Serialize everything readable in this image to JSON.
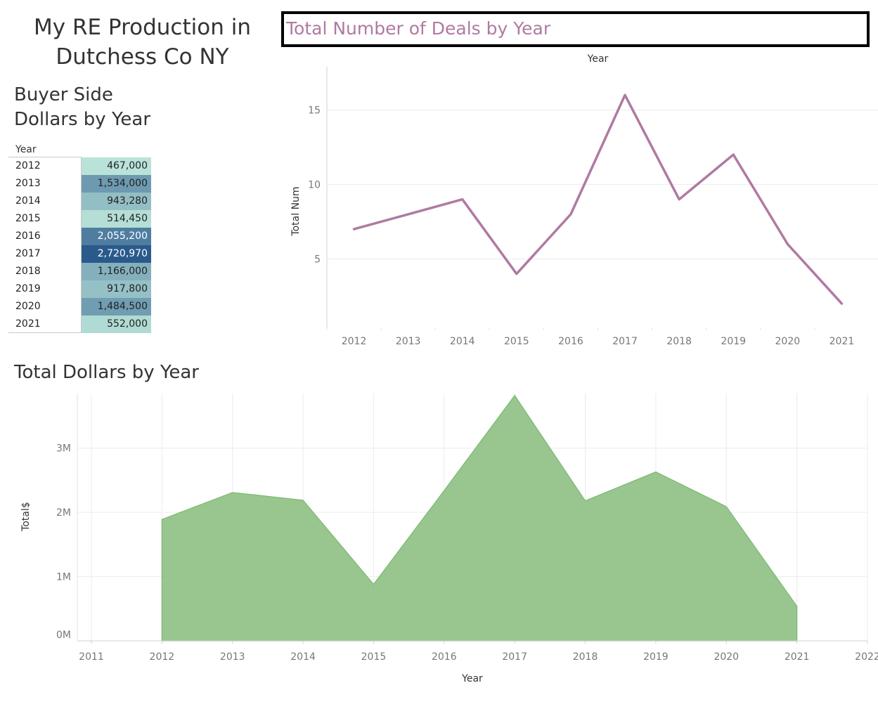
{
  "dashboard": {
    "title_line1": "My RE Production in",
    "title_line2": "Dutchess Co NY"
  },
  "buyer_table": {
    "title_line1": "Buyer Side",
    "title_line2": "Dollars by Year",
    "column_header": "Year",
    "rows": [
      {
        "year": "2012",
        "value": "467,000"
      },
      {
        "year": "2013",
        "value": "1,534,000"
      },
      {
        "year": "2014",
        "value": "943,280"
      },
      {
        "year": "2015",
        "value": "514,450"
      },
      {
        "year": "2016",
        "value": "2,055,200"
      },
      {
        "year": "2017",
        "value": "2,720,970"
      },
      {
        "year": "2018",
        "value": "1,166,000"
      },
      {
        "year": "2019",
        "value": "917,800"
      },
      {
        "year": "2020",
        "value": "1,484,500"
      },
      {
        "year": "2021",
        "value": "552,000"
      }
    ],
    "color_scale": {
      "low": "#b9e3d9",
      "high": "#2a5a8c"
    }
  },
  "chart_data": [
    {
      "type": "table",
      "title": "Buyer Side Dollars by Year",
      "columns": [
        "Year",
        "Buyer Side Dollars"
      ],
      "rows": [
        [
          "2012",
          467000
        ],
        [
          "2013",
          1534000
        ],
        [
          "2014",
          943280
        ],
        [
          "2015",
          514450
        ],
        [
          "2016",
          2055200
        ],
        [
          "2017",
          2720970
        ],
        [
          "2018",
          1166000
        ],
        [
          "2019",
          917800
        ],
        [
          "2020",
          1484500
        ],
        [
          "2021",
          552000
        ]
      ]
    },
    {
      "type": "line",
      "title": "Total Number of Deals by Year",
      "xlabel": "Year",
      "ylabel": "Total Num",
      "categories": [
        "2012",
        "2013",
        "2014",
        "2015",
        "2016",
        "2017",
        "2018",
        "2019",
        "2020",
        "2021"
      ],
      "values": [
        7,
        8,
        9,
        4,
        8,
        16,
        9,
        12,
        6,
        2
      ],
      "ylim": [
        0.4,
        17.9
      ],
      "yticks": [
        5,
        10,
        15
      ],
      "grid": true,
      "color": "#b07aa1"
    },
    {
      "type": "area",
      "title": "Total Dollars by Year",
      "xlabel": "Year",
      "ylabel": "Total$",
      "x_ticks": [
        "2011",
        "2012",
        "2013",
        "2014",
        "2015",
        "2016",
        "2017",
        "2018",
        "2019",
        "2020",
        "2021",
        "2022"
      ],
      "x": [
        "2012",
        "2013",
        "2014",
        "2015",
        "2016",
        "2017",
        "2018",
        "2019",
        "2020",
        "2021"
      ],
      "values": [
        1890000,
        2310000,
        2190000,
        880000,
        2340000,
        3820000,
        2180000,
        2630000,
        2090000,
        540000
      ],
      "ylim": [
        0,
        3850000
      ],
      "yticks": [
        0,
        1000000,
        2000000,
        3000000
      ],
      "ytick_labels": [
        "0M",
        "1M",
        "2M",
        "3M"
      ],
      "grid": true,
      "color": "#8fc184"
    }
  ]
}
